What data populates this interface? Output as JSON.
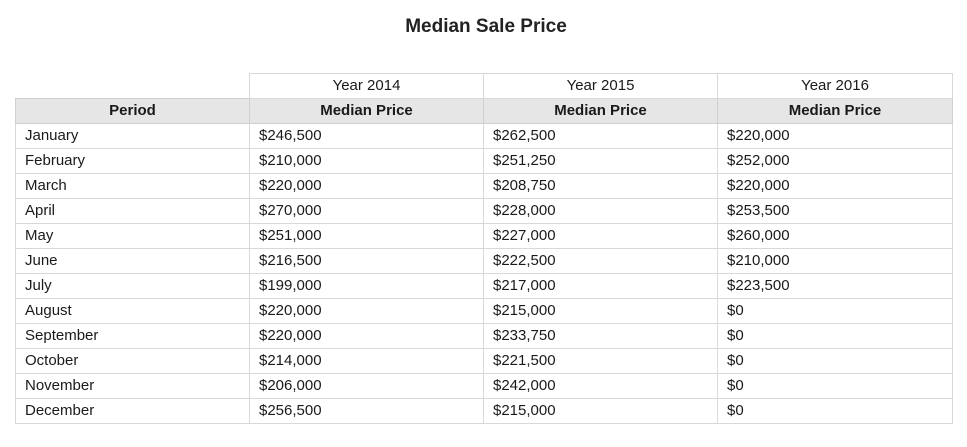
{
  "title": "Median Sale Price",
  "years": [
    "Year 2014",
    "Year 2015",
    "Year 2016"
  ],
  "headers": [
    "Period",
    "Median Price",
    "Median Price",
    "Median Price"
  ],
  "rows": [
    [
      "January",
      "$246,500",
      "$262,500",
      "$220,000"
    ],
    [
      "February",
      "$210,000",
      "$251,250",
      "$252,000"
    ],
    [
      "March",
      "$220,000",
      "$208,750",
      "$220,000"
    ],
    [
      "April",
      "$270,000",
      "$228,000",
      "$253,500"
    ],
    [
      "May",
      "$251,000",
      "$227,000",
      "$260,000"
    ],
    [
      "June",
      "$216,500",
      "$222,500",
      "$210,000"
    ],
    [
      "July",
      "$199,000",
      "$217,000",
      "$223,500"
    ],
    [
      "August",
      "$220,000",
      "$215,000",
      "$0"
    ],
    [
      "September",
      "$220,000",
      "$233,750",
      "$0"
    ],
    [
      "October",
      "$214,000",
      "$221,500",
      "$0"
    ],
    [
      "November",
      "$206,000",
      "$242,000",
      "$0"
    ],
    [
      "December",
      "$256,500",
      "$215,000",
      "$0"
    ]
  ]
}
